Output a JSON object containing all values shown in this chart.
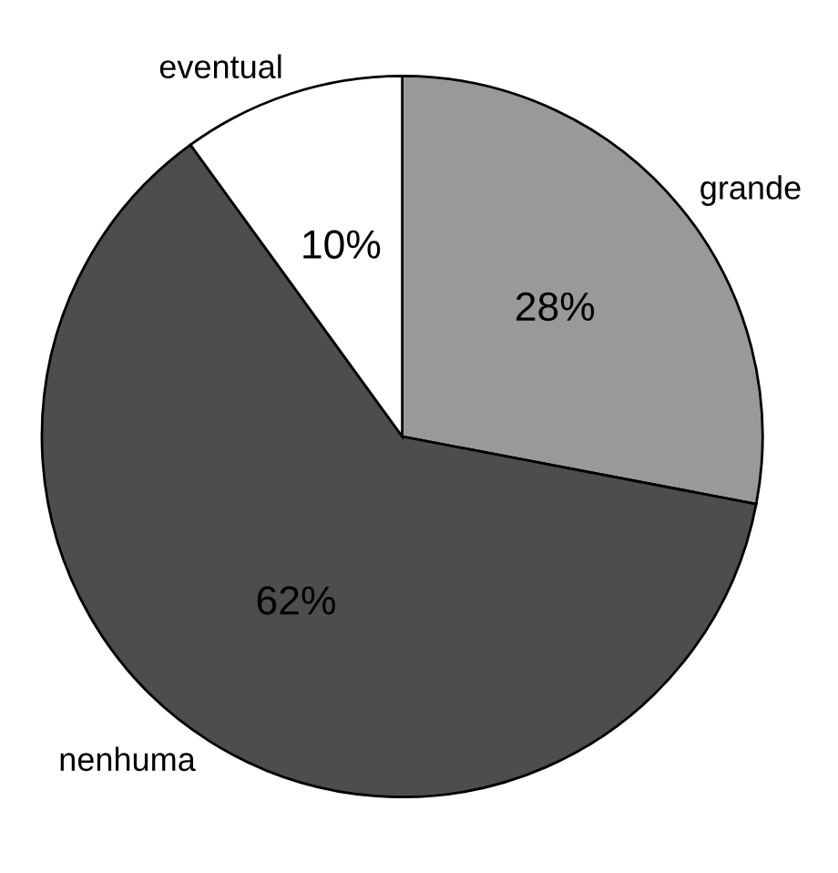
{
  "chart_data": {
    "type": "pie",
    "categories": [
      "grande",
      "nenhuma",
      "eventual"
    ],
    "values": [
      28,
      62,
      10
    ],
    "colors": [
      "#999999",
      "#4d4d4d",
      "#ffffff"
    ],
    "value_labels": [
      "28%",
      "62%",
      "10%"
    ]
  }
}
